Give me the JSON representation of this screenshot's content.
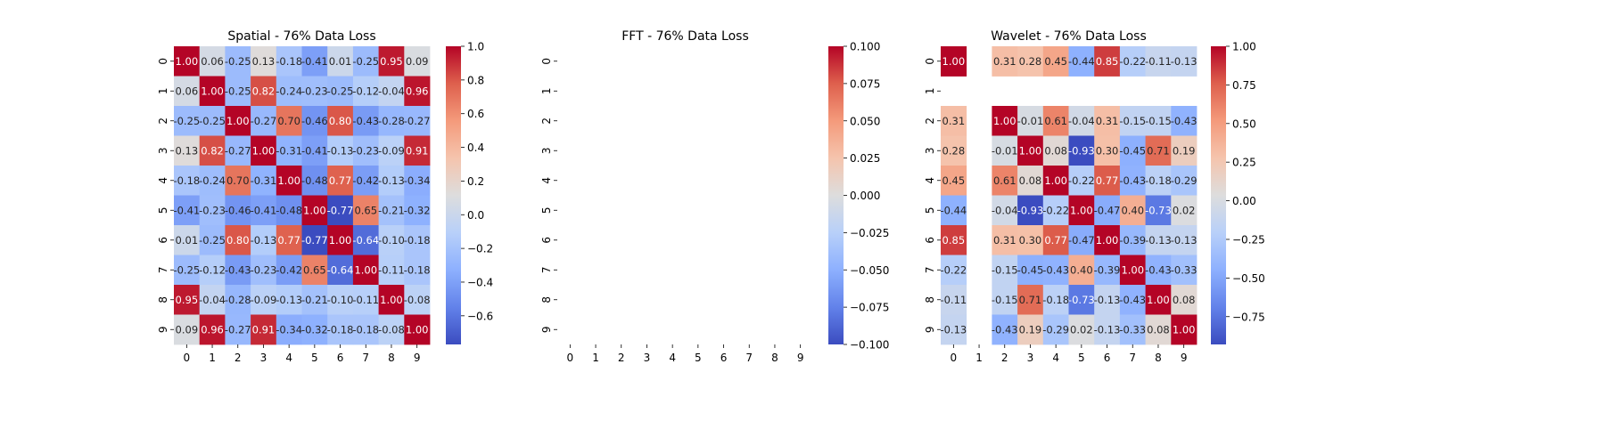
{
  "chart_data": [
    {
      "type": "heatmap",
      "title": "Spatial - 76% Data Loss",
      "x_categories": [
        "0",
        "1",
        "2",
        "3",
        "4",
        "5",
        "6",
        "7",
        "8",
        "9"
      ],
      "y_categories": [
        "0",
        "1",
        "2",
        "3",
        "4",
        "5",
        "6",
        "7",
        "8",
        "9"
      ],
      "colormap": "coolwarm",
      "vmin": -0.77,
      "vmax": 1.0,
      "colorbar_ticks": [
        "1.0",
        "0.8",
        "0.6",
        "0.4",
        "0.2",
        "0.0",
        "−0.2",
        "−0.4",
        "−0.6"
      ],
      "colorbar_tick_values": [
        1.0,
        0.8,
        0.6,
        0.4,
        0.2,
        0.0,
        -0.2,
        -0.4,
        -0.6
      ],
      "values": [
        [
          1.0,
          0.06,
          -0.25,
          0.13,
          -0.18,
          -0.41,
          0.01,
          -0.25,
          0.95,
          0.09
        ],
        [
          0.06,
          1.0,
          -0.25,
          0.82,
          -0.24,
          -0.23,
          -0.25,
          -0.12,
          -0.04,
          0.96
        ],
        [
          -0.25,
          -0.25,
          1.0,
          -0.27,
          0.7,
          -0.46,
          0.8,
          -0.43,
          -0.28,
          -0.27
        ],
        [
          0.13,
          0.82,
          -0.27,
          1.0,
          -0.31,
          -0.41,
          -0.13,
          -0.23,
          -0.09,
          0.91
        ],
        [
          -0.18,
          -0.24,
          0.7,
          -0.31,
          1.0,
          -0.48,
          0.77,
          -0.42,
          -0.13,
          -0.34
        ],
        [
          -0.41,
          -0.23,
          -0.46,
          -0.41,
          -0.48,
          1.0,
          -0.77,
          0.65,
          -0.21,
          -0.32
        ],
        [
          0.01,
          -0.25,
          0.8,
          -0.13,
          0.77,
          -0.77,
          1.0,
          -0.64,
          -0.1,
          -0.18
        ],
        [
          -0.25,
          -0.12,
          -0.43,
          -0.23,
          -0.42,
          0.65,
          -0.64,
          1.0,
          -0.11,
          -0.18
        ],
        [
          0.95,
          -0.04,
          -0.28,
          -0.09,
          -0.13,
          -0.21,
          -0.1,
          -0.11,
          1.0,
          -0.08
        ],
        [
          0.09,
          0.96,
          -0.27,
          0.91,
          -0.34,
          -0.32,
          -0.18,
          -0.18,
          -0.08,
          1.0
        ]
      ]
    },
    {
      "type": "heatmap",
      "title": "FFT - 76% Data Loss",
      "x_categories": [
        "0",
        "1",
        "2",
        "3",
        "4",
        "5",
        "6",
        "7",
        "8",
        "9"
      ],
      "y_categories": [
        "0",
        "1",
        "2",
        "3",
        "4",
        "5",
        "6",
        "7",
        "8",
        "9"
      ],
      "colormap": "coolwarm",
      "vmin": -0.1,
      "vmax": 0.1,
      "colorbar_ticks": [
        "0.100",
        "0.075",
        "0.050",
        "0.025",
        "0.000",
        "−0.025",
        "−0.050",
        "−0.075",
        "−0.100"
      ],
      "colorbar_tick_values": [
        0.1,
        0.075,
        0.05,
        0.025,
        0.0,
        -0.025,
        -0.05,
        -0.075,
        -0.1
      ],
      "values": [
        [
          null,
          null,
          null,
          null,
          null,
          null,
          null,
          null,
          null,
          null
        ],
        [
          null,
          null,
          null,
          null,
          null,
          null,
          null,
          null,
          null,
          null
        ],
        [
          null,
          null,
          null,
          null,
          null,
          null,
          null,
          null,
          null,
          null
        ],
        [
          null,
          null,
          null,
          null,
          null,
          null,
          null,
          null,
          null,
          null
        ],
        [
          null,
          null,
          null,
          null,
          null,
          null,
          null,
          null,
          null,
          null
        ],
        [
          null,
          null,
          null,
          null,
          null,
          null,
          null,
          null,
          null,
          null
        ],
        [
          null,
          null,
          null,
          null,
          null,
          null,
          null,
          null,
          null,
          null
        ],
        [
          null,
          null,
          null,
          null,
          null,
          null,
          null,
          null,
          null,
          null
        ],
        [
          null,
          null,
          null,
          null,
          null,
          null,
          null,
          null,
          null,
          null
        ],
        [
          null,
          null,
          null,
          null,
          null,
          null,
          null,
          null,
          null,
          null
        ]
      ]
    },
    {
      "type": "heatmap",
      "title": "Wavelet - 76% Data Loss",
      "x_categories": [
        "0",
        "1",
        "2",
        "3",
        "4",
        "5",
        "6",
        "7",
        "8",
        "9"
      ],
      "y_categories": [
        "0",
        "1",
        "2",
        "3",
        "4",
        "5",
        "6",
        "7",
        "8",
        "9"
      ],
      "colormap": "coolwarm",
      "vmin": -0.93,
      "vmax": 1.0,
      "colorbar_ticks": [
        "1.00",
        "0.75",
        "0.50",
        "0.25",
        "0.00",
        "−0.25",
        "−0.50",
        "−0.75"
      ],
      "colorbar_tick_values": [
        1.0,
        0.75,
        0.5,
        0.25,
        0.0,
        -0.25,
        -0.5,
        -0.75
      ],
      "values": [
        [
          1.0,
          null,
          0.31,
          0.28,
          0.45,
          -0.44,
          0.85,
          -0.22,
          -0.11,
          -0.13
        ],
        [
          null,
          null,
          null,
          null,
          null,
          null,
          null,
          null,
          null,
          null
        ],
        [
          0.31,
          null,
          1.0,
          -0.01,
          0.61,
          -0.04,
          0.31,
          -0.15,
          -0.15,
          -0.43
        ],
        [
          0.28,
          null,
          -0.01,
          1.0,
          0.08,
          -0.93,
          0.3,
          -0.45,
          0.71,
          0.19
        ],
        [
          0.45,
          null,
          0.61,
          0.08,
          1.0,
          -0.22,
          0.77,
          -0.43,
          -0.18,
          -0.29
        ],
        [
          -0.44,
          null,
          -0.04,
          -0.93,
          -0.22,
          1.0,
          -0.47,
          0.4,
          -0.73,
          0.02
        ],
        [
          0.85,
          null,
          0.31,
          0.3,
          0.77,
          -0.47,
          1.0,
          -0.39,
          -0.13,
          -0.13
        ],
        [
          -0.22,
          null,
          -0.15,
          -0.45,
          -0.43,
          0.4,
          -0.39,
          1.0,
          -0.43,
          -0.33
        ],
        [
          -0.11,
          null,
          -0.15,
          0.71,
          -0.18,
          -0.73,
          -0.13,
          -0.43,
          1.0,
          0.08
        ],
        [
          -0.13,
          null,
          -0.43,
          0.19,
          -0.29,
          0.02,
          -0.13,
          -0.33,
          0.08,
          1.0
        ]
      ]
    }
  ]
}
